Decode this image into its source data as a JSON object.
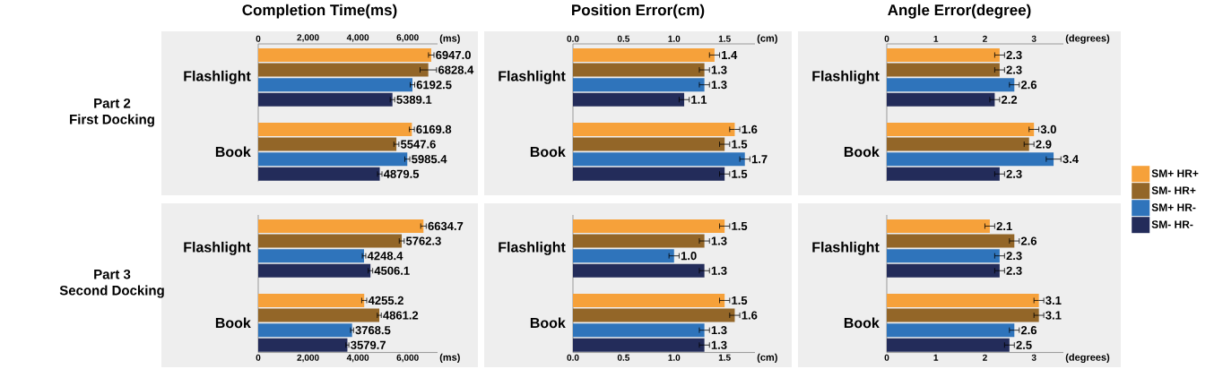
{
  "chart_data": [
    {
      "type": "bar",
      "orientation": "horizontal",
      "title": "Completion Time(ms)",
      "xlabel": "(ms)",
      "ylabel": "Part 2\nFirst Docking",
      "categories": [
        "Flashlight",
        "Book"
      ],
      "xlim": [
        0,
        7200
      ],
      "xticks": [
        0,
        {
          "value": 2000,
          "label": "2,000"
        },
        {
          "value": 4000,
          "label": "4,000"
        },
        {
          "value": 6000,
          "label": "6,000"
        }
      ],
      "series": [
        {
          "color": "#f6a13a",
          "values": [
            6947.0,
            6169.8
          ],
          "errors": [
            110,
            100
          ],
          "value_labels": [
            "6947.0",
            "6169.8"
          ]
        },
        {
          "color": "#936628",
          "values": [
            6828.4,
            5547.6
          ],
          "errors": [
            330,
            100
          ],
          "value_labels": [
            "6828.4",
            "5547.6"
          ]
        },
        {
          "color": "#2f74bb",
          "values": [
            6192.5,
            5985.4
          ],
          "errors": [
            90,
            100
          ],
          "value_labels": [
            "6192.5",
            "5985.4"
          ]
        },
        {
          "color": "#232c5a",
          "values": [
            5389.1,
            4879.5
          ],
          "errors": [
            90,
            90
          ],
          "value_labels": [
            "5389.1",
            "4879.5"
          ]
        }
      ]
    },
    {
      "type": "bar",
      "orientation": "horizontal",
      "title": "Position Error(cm)",
      "xlabel": "(cm)",
      "categories": [
        "Flashlight",
        "Book"
      ],
      "xlim": [
        0,
        1.8
      ],
      "xticks": [
        {
          "value": 0,
          "label": "0.0"
        },
        0.5,
        {
          "value": 1,
          "label": "1.0"
        },
        1.5
      ],
      "series": [
        {
          "color": "#f6a13a",
          "values": [
            1.4,
            1.6
          ],
          "errors": [
            0.05,
            0.05
          ],
          "value_labels": [
            "1.4",
            "1.6"
          ]
        },
        {
          "color": "#936628",
          "values": [
            1.3,
            1.5
          ],
          "errors": [
            0.05,
            0.05
          ],
          "value_labels": [
            "1.3",
            "1.5"
          ]
        },
        {
          "color": "#2f74bb",
          "values": [
            1.3,
            1.7
          ],
          "errors": [
            0.05,
            0.05
          ],
          "value_labels": [
            "1.3",
            "1.7"
          ]
        },
        {
          "color": "#232c5a",
          "values": [
            1.1,
            1.5
          ],
          "errors": [
            0.05,
            0.05
          ],
          "value_labels": [
            "1.1",
            "1.5"
          ]
        }
      ]
    },
    {
      "type": "bar",
      "orientation": "horizontal",
      "title": "Angle Error(degree)",
      "xlabel": "(degrees)",
      "categories": [
        "Flashlight",
        "Book"
      ],
      "xlim": [
        0,
        3.6
      ],
      "xticks": [
        0,
        1,
        2,
        3
      ],
      "series": [
        {
          "color": "#f6a13a",
          "values": [
            2.3,
            3.0
          ],
          "errors": [
            0.1,
            0.1
          ],
          "value_labels": [
            "2.3",
            "3.0"
          ]
        },
        {
          "color": "#936628",
          "values": [
            2.3,
            2.9
          ],
          "errors": [
            0.1,
            0.1
          ],
          "value_labels": [
            "2.3",
            "2.9"
          ]
        },
        {
          "color": "#2f74bb",
          "values": [
            2.6,
            3.4
          ],
          "errors": [
            0.1,
            0.15
          ],
          "value_labels": [
            "2.6",
            "3.4"
          ]
        },
        {
          "color": "#232c5a",
          "values": [
            2.2,
            2.3
          ],
          "errors": [
            0.1,
            0.1
          ],
          "value_labels": [
            "2.2",
            "2.3"
          ]
        }
      ]
    },
    {
      "type": "bar",
      "orientation": "horizontal",
      "xlabel": "(ms)",
      "ylabel": "Part 3\nSecond Docking",
      "categories": [
        "Flashlight",
        "Book"
      ],
      "xlim": [
        0,
        7200
      ],
      "xticks": [
        0,
        {
          "value": 2000,
          "label": "2,000"
        },
        {
          "value": 4000,
          "label": "4,000"
        },
        {
          "value": 6000,
          "label": "6,000"
        }
      ],
      "series": [
        {
          "color": "#f6a13a",
          "values": [
            6634.7,
            4255.2
          ],
          "errors": [
            110,
            100
          ],
          "value_labels": [
            "6634.7",
            "4255.2"
          ]
        },
        {
          "color": "#936628",
          "values": [
            5762.3,
            4861.2
          ],
          "errors": [
            100,
            80
          ],
          "value_labels": [
            "5762.3",
            "4861.2"
          ]
        },
        {
          "color": "#2f74bb",
          "values": [
            4248.4,
            3768.5
          ],
          "errors": [
            70,
            60
          ],
          "value_labels": [
            "4248.4",
            "3768.5"
          ]
        },
        {
          "color": "#232c5a",
          "values": [
            4506.1,
            3579.7
          ],
          "errors": [
            90,
            60
          ],
          "value_labels": [
            "4506.1",
            "3579.7"
          ]
        }
      ]
    },
    {
      "type": "bar",
      "orientation": "horizontal",
      "xlabel": "(cm)",
      "categories": [
        "Flashlight",
        "Book"
      ],
      "xlim": [
        0,
        1.8
      ],
      "xticks": [
        {
          "value": 0,
          "label": "0.0"
        },
        0.5,
        {
          "value": 1,
          "label": "1.0"
        },
        1.5
      ],
      "series": [
        {
          "color": "#f6a13a",
          "values": [
            1.5,
            1.5
          ],
          "errors": [
            0.05,
            0.05
          ],
          "value_labels": [
            "1.5",
            "1.5"
          ]
        },
        {
          "color": "#936628",
          "values": [
            1.3,
            1.6
          ],
          "errors": [
            0.05,
            0.05
          ],
          "value_labels": [
            "1.3",
            "1.6"
          ]
        },
        {
          "color": "#2f74bb",
          "values": [
            1.0,
            1.3
          ],
          "errors": [
            0.05,
            0.05
          ],
          "value_labels": [
            "1.0",
            "1.3"
          ]
        },
        {
          "color": "#232c5a",
          "values": [
            1.3,
            1.3
          ],
          "errors": [
            0.05,
            0.05
          ],
          "value_labels": [
            "1.3",
            "1.3"
          ]
        }
      ]
    },
    {
      "type": "bar",
      "orientation": "horizontal",
      "xlabel": "(degrees)",
      "categories": [
        "Flashlight",
        "Book"
      ],
      "xlim": [
        0,
        3.6
      ],
      "xticks": [
        0,
        1,
        2,
        3
      ],
      "legend": "right",
      "series": [
        {
          "name": "SM+ HR+",
          "color": "#f6a13a",
          "values": [
            2.1,
            3.1
          ],
          "errors": [
            0.1,
            0.1
          ],
          "value_labels": [
            "2.1",
            "3.1"
          ]
        },
        {
          "name": "SM- HR+",
          "color": "#936628",
          "values": [
            2.6,
            3.1
          ],
          "errors": [
            0.1,
            0.1
          ],
          "value_labels": [
            "2.6",
            "3.1"
          ]
        },
        {
          "name": "SM+ HR-",
          "color": "#2f74bb",
          "values": [
            2.3,
            2.6
          ],
          "errors": [
            0.1,
            0.1
          ],
          "value_labels": [
            "2.3",
            "2.6"
          ]
        },
        {
          "name": "SM- HR-",
          "color": "#232c5a",
          "values": [
            2.3,
            2.5
          ],
          "errors": [
            0.1,
            0.1
          ],
          "value_labels": [
            "2.3",
            "2.5"
          ]
        }
      ]
    }
  ]
}
